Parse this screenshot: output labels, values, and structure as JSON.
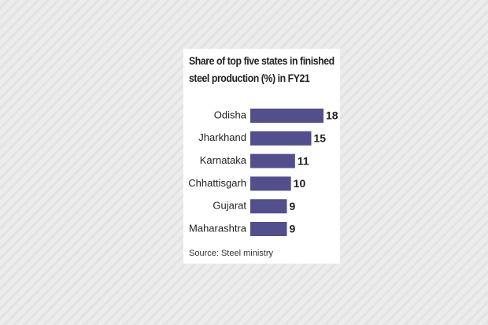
{
  "chart_data": {
    "type": "bar",
    "orientation": "horizontal",
    "title": "Share of top five states in finished steel production (%) in FY21",
    "categories": [
      "Odisha",
      "Jharkhand",
      "Karnataka",
      "Chhattisgarh",
      "Gujarat",
      "Maharashtra"
    ],
    "values": [
      18,
      15,
      11,
      10,
      9,
      9
    ],
    "color": "#534e8c",
    "source": "Source: Steel ministry"
  }
}
